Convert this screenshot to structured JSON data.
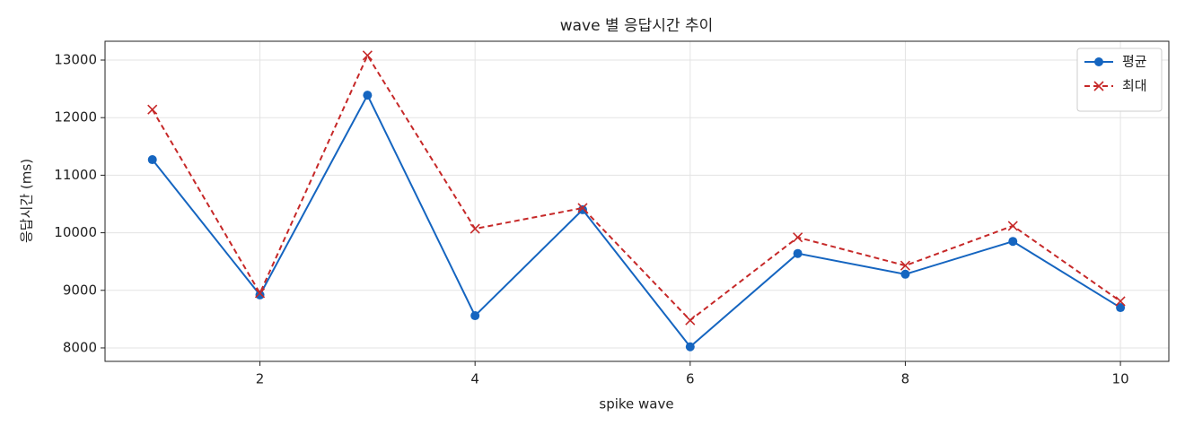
{
  "chart_data": {
    "type": "line",
    "title": "wave 별 응답시간 추이",
    "xlabel": "spike wave",
    "ylabel": "응답시간 (ms)",
    "x": [
      1,
      2,
      3,
      4,
      5,
      6,
      7,
      8,
      9,
      10
    ],
    "series": [
      {
        "name": "평균",
        "color": "#1565c0",
        "marker": "o",
        "dash": false,
        "values": [
          11270,
          8920,
          12390,
          8560,
          10400,
          8020,
          9640,
          9280,
          9850,
          8700
        ]
      },
      {
        "name": "최대",
        "color": "#c62828",
        "marker": "x",
        "dash": true,
        "values": [
          12140,
          8950,
          13080,
          10070,
          10430,
          8480,
          9920,
          9430,
          10120,
          8810
        ]
      }
    ],
    "xlim": [
      0.56,
      10.45
    ],
    "xticks": [
      2,
      4,
      6,
      8,
      10
    ],
    "ylim": [
      7766,
      13327
    ],
    "yticks": [
      8000,
      9000,
      10000,
      11000,
      12000,
      13000
    ],
    "grid": true,
    "legend": "upper right"
  }
}
